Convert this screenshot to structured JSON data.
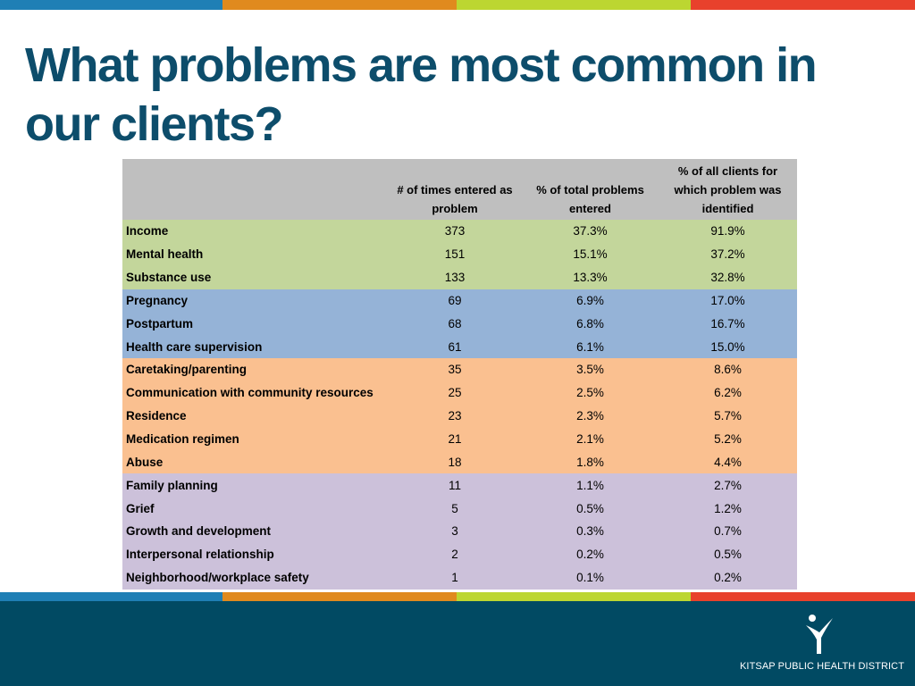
{
  "colors": {
    "title": "#0d4d6b",
    "footer_bg": "#014a63",
    "header_row": "#bfbfbf",
    "bar_segments": [
      "#1f7fb5",
      "#e08a1e",
      "#bcd631",
      "#e8412c"
    ],
    "groups": {
      "green": "#c3d69b",
      "blue": "#95b3d7",
      "orange": "#fac090",
      "purple": "#ccc1da"
    }
  },
  "title": "What problems are most common in our clients?",
  "table": {
    "columns": [
      "",
      "# of times entered as problem",
      "% of total problems entered",
      "% of all clients for which problem was identified"
    ],
    "rows": [
      {
        "label": "Income",
        "count": "373",
        "pct_total": "37.3%",
        "pct_clients": "91.9%",
        "group": "green"
      },
      {
        "label": "Mental health",
        "count": "151",
        "pct_total": "15.1%",
        "pct_clients": "37.2%",
        "group": "green"
      },
      {
        "label": "Substance use",
        "count": "133",
        "pct_total": "13.3%",
        "pct_clients": "32.8%",
        "group": "green"
      },
      {
        "label": "Pregnancy",
        "count": "69",
        "pct_total": "6.9%",
        "pct_clients": "17.0%",
        "group": "blue"
      },
      {
        "label": "Postpartum",
        "count": "68",
        "pct_total": "6.8%",
        "pct_clients": "16.7%",
        "group": "blue"
      },
      {
        "label": "Health care supervision",
        "count": "61",
        "pct_total": "6.1%",
        "pct_clients": "15.0%",
        "group": "blue"
      },
      {
        "label": "Caretaking/parenting",
        "count": "35",
        "pct_total": "3.5%",
        "pct_clients": "8.6%",
        "group": "orange"
      },
      {
        "label": "Communication with community resources",
        "count": "25",
        "pct_total": "2.5%",
        "pct_clients": "6.2%",
        "group": "orange"
      },
      {
        "label": "Residence",
        "count": "23",
        "pct_total": "2.3%",
        "pct_clients": "5.7%",
        "group": "orange"
      },
      {
        "label": "Medication regimen",
        "count": "21",
        "pct_total": "2.1%",
        "pct_clients": "5.2%",
        "group": "orange"
      },
      {
        "label": "Abuse",
        "count": "18",
        "pct_total": "1.8%",
        "pct_clients": "4.4%",
        "group": "orange"
      },
      {
        "label": "Family planning",
        "count": "11",
        "pct_total": "1.1%",
        "pct_clients": "2.7%",
        "group": "purple"
      },
      {
        "label": "Grief",
        "count": "5",
        "pct_total": "0.5%",
        "pct_clients": "1.2%",
        "group": "purple"
      },
      {
        "label": "Growth and development",
        "count": "3",
        "pct_total": "0.3%",
        "pct_clients": "0.7%",
        "group": "purple"
      },
      {
        "label": "Interpersonal relationship",
        "count": "2",
        "pct_total": "0.2%",
        "pct_clients": "0.5%",
        "group": "purple"
      },
      {
        "label": "Neighborhood/workplace safety",
        "count": "1",
        "pct_total": "0.1%",
        "pct_clients": "0.2%",
        "group": "purple"
      }
    ]
  },
  "footer": {
    "org_name": "KITSAP PUBLIC HEALTH DISTRICT",
    "logo_icon": "person-figure-icon"
  }
}
